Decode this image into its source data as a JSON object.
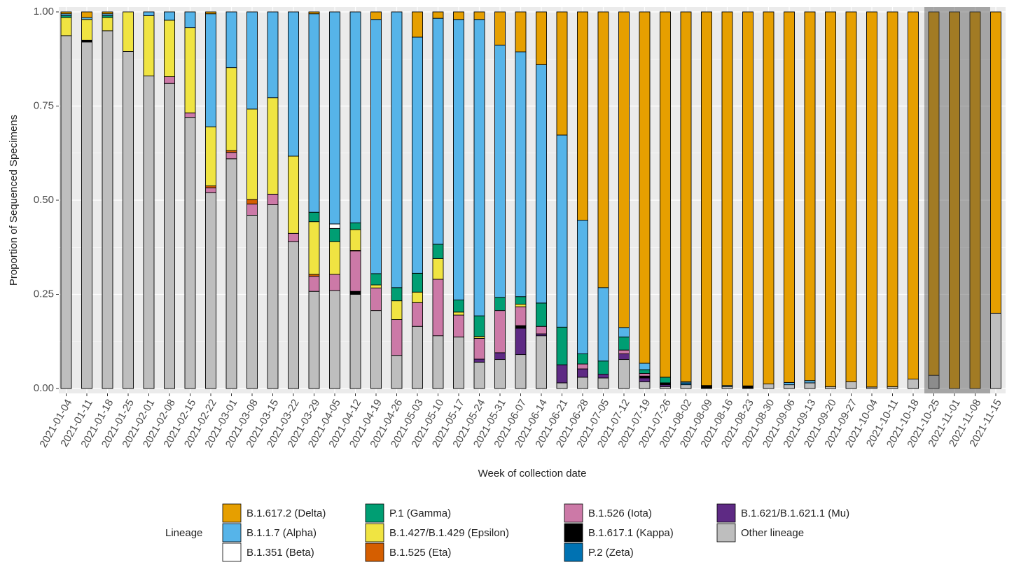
{
  "chart_data": {
    "type": "stacked_bar",
    "x_label": "Week of collection date",
    "y_label": "Proportion of Sequenced Specimens",
    "legend_title": "Lineage",
    "categories": [
      "2021-01-04",
      "2021-01-11",
      "2021-01-18",
      "2021-01-25",
      "2021-02-01",
      "2021-02-08",
      "2021-02-15",
      "2021-02-22",
      "2021-03-01",
      "2021-03-08",
      "2021-03-15",
      "2021-03-22",
      "2021-03-29",
      "2021-04-05",
      "2021-04-12",
      "2021-04-19",
      "2021-04-26",
      "2021-05-03",
      "2021-05-10",
      "2021-05-17",
      "2021-05-24",
      "2021-05-31",
      "2021-06-07",
      "2021-06-14",
      "2021-06-21",
      "2021-06-28",
      "2021-07-05",
      "2021-07-12",
      "2021-07-19",
      "2021-07-26",
      "2021-08-02",
      "2021-08-09",
      "2021-08-16",
      "2021-08-23",
      "2021-08-30",
      "2021-09-06",
      "2021-09-13",
      "2021-09-20",
      "2021-09-27",
      "2021-10-04",
      "2021-10-11",
      "2021-10-18",
      "2021-10-25",
      "2021-11-01",
      "2021-11-08",
      "2021-11-15"
    ],
    "ylim": [
      0,
      1
    ],
    "yticks": [
      {
        "value": 0,
        "label": "0.00"
      },
      {
        "value": 0.25,
        "label": "0.25"
      },
      {
        "value": 0.5,
        "label": "0.50"
      },
      {
        "value": 0.75,
        "label": "0.75"
      },
      {
        "value": 1,
        "label": "1.00"
      }
    ],
    "grid": true,
    "series": [
      {
        "name": "B.1.617.2 (Delta)",
        "color": "#E69F00",
        "values": [
          0.005,
          0.015,
          0.005,
          0,
          0,
          0,
          0,
          0.005,
          0,
          0,
          0,
          0,
          0.005,
          0,
          0,
          0.02,
          0,
          0.067,
          0.017,
          0.02,
          0.02,
          0.088,
          0.106,
          0.14,
          0.327,
          0.553,
          0.732,
          0.838,
          0.933,
          0.97,
          0.982,
          0.992,
          0.992,
          0.993,
          0.988,
          0.984,
          0.979,
          0.995,
          0.982,
          0.996,
          0.995,
          0.975,
          0.965,
          1,
          1,
          0.8
        ]
      },
      {
        "name": "B.1.1.7 (Alpha)",
        "color": "#56B4E9",
        "values": [
          0.005,
          0.005,
          0.005,
          0,
          0.01,
          0.022,
          0.042,
          0.3,
          0.148,
          0.258,
          0.228,
          0.383,
          0.527,
          0.563,
          0.56,
          0.675,
          0.732,
          0.627,
          0.6,
          0.745,
          0.787,
          0.67,
          0.65,
          0.633,
          0.51,
          0.355,
          0.195,
          0.025,
          0.017,
          0,
          0.003,
          0,
          0.003,
          0,
          0,
          0.006,
          0.006,
          0,
          0,
          0,
          0,
          0,
          0,
          0,
          0,
          0
        ]
      },
      {
        "name": "B.1.351 (Beta)",
        "color": "#FFFFFF",
        "values": [
          0,
          0,
          0,
          0,
          0,
          0,
          0,
          0,
          0,
          0,
          0,
          0,
          0,
          0.012,
          0,
          0,
          0,
          0,
          0,
          0,
          0,
          0,
          0,
          0,
          0,
          0,
          0,
          0,
          0,
          0,
          0,
          0,
          0,
          0,
          0,
          0,
          0,
          0,
          0,
          0,
          0,
          0,
          0,
          0,
          0,
          0
        ]
      },
      {
        "name": "P.1 (Gamma)",
        "color": "#009E73",
        "values": [
          0.005,
          0,
          0.005,
          0,
          0,
          0,
          0,
          0,
          0,
          0,
          0,
          0,
          0.025,
          0.035,
          0.018,
          0.03,
          0.035,
          0.05,
          0.038,
          0.032,
          0.055,
          0.035,
          0.02,
          0.062,
          0.1,
          0.027,
          0.035,
          0.035,
          0.01,
          0.015,
          0,
          0,
          0,
          0,
          0,
          0,
          0,
          0,
          0,
          0,
          0,
          0,
          0,
          0,
          0,
          0
        ]
      },
      {
        "name": "B.1.427/B.1.429 (Epsilon)",
        "color": "#F0E442",
        "values": [
          0.048,
          0.055,
          0.035,
          0.105,
          0.16,
          0.15,
          0.226,
          0.157,
          0.22,
          0.24,
          0.256,
          0.205,
          0.14,
          0.087,
          0.055,
          0.008,
          0.05,
          0.028,
          0.055,
          0.008,
          0.005,
          0,
          0.007,
          0,
          0,
          0,
          0,
          0,
          0,
          0,
          0,
          0,
          0,
          0,
          0,
          0,
          0,
          0,
          0,
          0,
          0,
          0,
          0,
          0,
          0,
          0
        ]
      },
      {
        "name": "B.1.525 (Eta)",
        "color": "#D55E00",
        "values": [
          0,
          0,
          0,
          0,
          0,
          0,
          0,
          0.005,
          0.005,
          0.012,
          0,
          0,
          0.005,
          0,
          0.002,
          0,
          0,
          0,
          0,
          0,
          0,
          0,
          0,
          0,
          0,
          0,
          0,
          0,
          0,
          0,
          0,
          0,
          0,
          0,
          0,
          0,
          0,
          0,
          0,
          0,
          0,
          0,
          0,
          0,
          0,
          0
        ]
      },
      {
        "name": "B.1.526 (Iota)",
        "color": "#CC79A7",
        "values": [
          0,
          0,
          0,
          0,
          0,
          0.018,
          0.012,
          0.013,
          0.017,
          0.03,
          0.028,
          0.022,
          0.04,
          0.043,
          0.107,
          0.06,
          0.095,
          0.063,
          0.15,
          0.058,
          0.055,
          0.112,
          0.05,
          0.02,
          0,
          0.013,
          0,
          0.01,
          0.007,
          0,
          0,
          0,
          0,
          0,
          0,
          0,
          0,
          0,
          0,
          0,
          0,
          0,
          0,
          0,
          0,
          0
        ]
      },
      {
        "name": "B.1.617.1 (Kappa)",
        "color": "#000000",
        "values": [
          0,
          0.005,
          0,
          0,
          0,
          0,
          0,
          0,
          0,
          0,
          0,
          0,
          0,
          0,
          0.008,
          0,
          0,
          0,
          0,
          0,
          0,
          0,
          0.007,
          0,
          0,
          0,
          0,
          0,
          0.005,
          0.005,
          0,
          0.008,
          0,
          0.007,
          0,
          0,
          0,
          0,
          0,
          0,
          0,
          0,
          0,
          0,
          0,
          0
        ]
      },
      {
        "name": "P.2 (Zeta)",
        "color": "#0072B2",
        "values": [
          0,
          0,
          0,
          0,
          0,
          0,
          0,
          0,
          0,
          0,
          0,
          0,
          0,
          0,
          0,
          0,
          0,
          0,
          0,
          0,
          0,
          0,
          0,
          0,
          0,
          0,
          0,
          0,
          0,
          0,
          0.005,
          0,
          0,
          0,
          0,
          0,
          0,
          0,
          0,
          0,
          0,
          0,
          0,
          0,
          0,
          0
        ]
      },
      {
        "name": "B.1.621/B.1.621.1 (Mu)",
        "color": "#5E2A84",
        "values": [
          0,
          0,
          0,
          0,
          0,
          0,
          0,
          0,
          0,
          0,
          0,
          0,
          0,
          0,
          0,
          0,
          0,
          0,
          0,
          0,
          0.008,
          0.018,
          0.07,
          0.005,
          0.048,
          0.022,
          0.01,
          0.015,
          0.01,
          0.005,
          0,
          0,
          0,
          0,
          0,
          0,
          0,
          0,
          0,
          0,
          0,
          0,
          0,
          0,
          0,
          0
        ]
      },
      {
        "name": "Other lineage",
        "color": "#BEBEBE",
        "values": [
          0.937,
          0.92,
          0.95,
          0.895,
          0.83,
          0.81,
          0.72,
          0.52,
          0.61,
          0.46,
          0.488,
          0.39,
          0.258,
          0.26,
          0.25,
          0.207,
          0.088,
          0.165,
          0.14,
          0.137,
          0.07,
          0.077,
          0.09,
          0.14,
          0.015,
          0.03,
          0.028,
          0.077,
          0.018,
          0.005,
          0.01,
          0,
          0.005,
          0,
          0.012,
          0.01,
          0.015,
          0.005,
          0.018,
          0.004,
          0.005,
          0.025,
          0.035,
          0,
          0,
          0.2
        ]
      }
    ]
  }
}
